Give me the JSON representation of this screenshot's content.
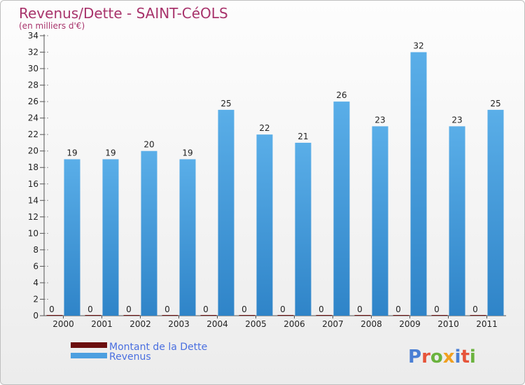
{
  "header": {
    "title": "Revenus/Dette - SAINT-CéOLS",
    "subtitle": "(en milliers d'€)"
  },
  "logo": {
    "text": "Proxiti",
    "colors": [
      "#4a7fd4",
      "#e6543a",
      "#6bb33e",
      "#f0a020",
      "#4a7fd4",
      "#e6543a",
      "#6bb33e"
    ]
  },
  "colors": {
    "dette": "#6b0f0f",
    "revenus": "#4c9fe0",
    "revenus_dark": "#2a7fc4",
    "axis": "#555555",
    "grid": "#9a9a9a"
  },
  "chart_data": {
    "type": "bar",
    "title": "Revenus/Dette - SAINT-CéOLS",
    "subtitle": "(en milliers d'€)",
    "xlabel": "",
    "ylabel": "",
    "ylim": [
      0,
      34
    ],
    "yticks": [
      0,
      2,
      4,
      6,
      8,
      10,
      12,
      14,
      16,
      18,
      20,
      22,
      24,
      26,
      28,
      30,
      32,
      34
    ],
    "grid": "dashed-left-ticks",
    "legend_position": "bottom-left",
    "categories": [
      "2000",
      "2001",
      "2002",
      "2003",
      "2004",
      "2005",
      "2006",
      "2007",
      "2008",
      "2009",
      "2010",
      "2011"
    ],
    "series": [
      {
        "name": "Montant de la Dette",
        "color": "#6b0f0f",
        "values": [
          0,
          0,
          0,
          0,
          0,
          0,
          0,
          0,
          0,
          0,
          0,
          0
        ]
      },
      {
        "name": "Revenus",
        "color": "#4c9fe0",
        "values": [
          19,
          19,
          20,
          19,
          25,
          22,
          21,
          26,
          23,
          32,
          23,
          25
        ]
      }
    ]
  }
}
